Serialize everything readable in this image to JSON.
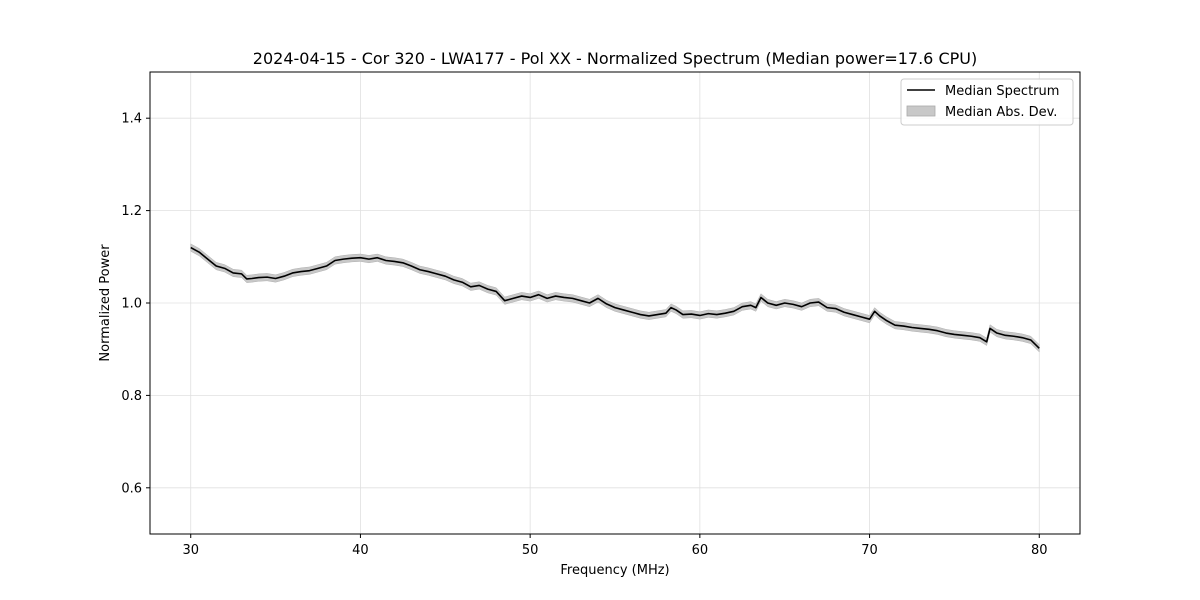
{
  "chart_data": {
    "type": "line",
    "title": "2024-04-15 - Cor 320 - LWA177 - Pol XX - Normalized Spectrum (Median power=17.6 CPU)",
    "xlabel": "Frequency (MHz)",
    "ylabel": "Normalized Power",
    "xlim": [
      27.6,
      82.4
    ],
    "ylim": [
      0.5,
      1.5
    ],
    "xticks": [
      30,
      40,
      50,
      60,
      70,
      80
    ],
    "xtick_labels": [
      "30",
      "40",
      "50",
      "60",
      "70",
      "80"
    ],
    "yticks": [
      0.6,
      0.8,
      1.0,
      1.2,
      1.4
    ],
    "ytick_labels": [
      "0.6",
      "0.8",
      "1.0",
      "1.2",
      "1.4"
    ],
    "grid": true,
    "legend_position": "top-right",
    "colors": {
      "line": "#000000",
      "band": "#c8c8c8",
      "grid": "#e0e0e0"
    },
    "series": [
      {
        "name": "Median Spectrum",
        "x": [
          30,
          30.5,
          31,
          31.5,
          32,
          32.5,
          33,
          33.3,
          33.6,
          34,
          34.5,
          35,
          35.5,
          36,
          36.5,
          37,
          37.5,
          38,
          38.5,
          39,
          39.5,
          40,
          40.5,
          41,
          41.5,
          42,
          42.5,
          43,
          43.5,
          44,
          44.5,
          45,
          45.5,
          46,
          46.5,
          47,
          47.5,
          48,
          48.5,
          49,
          49.5,
          50,
          50.5,
          51,
          51.5,
          52,
          52.5,
          53,
          53.5,
          54,
          54.5,
          55,
          55.5,
          56,
          56.5,
          57,
          57.5,
          58,
          58.3,
          58.6,
          59,
          59.5,
          60,
          60.5,
          61,
          61.5,
          62,
          62.5,
          63,
          63.3,
          63.6,
          64,
          64.5,
          65,
          65.5,
          66,
          66.5,
          67,
          67.5,
          68,
          68.5,
          69,
          69.5,
          70,
          70.3,
          70.6,
          71,
          71.5,
          72,
          72.5,
          73,
          73.5,
          74,
          74.5,
          75,
          75.5,
          76,
          76.5,
          76.9,
          77.1,
          77.5,
          78,
          78.5,
          79,
          79.5,
          80
        ],
        "values": [
          1.12,
          1.11,
          1.095,
          1.08,
          1.075,
          1.065,
          1.063,
          1.052,
          1.053,
          1.055,
          1.056,
          1.053,
          1.058,
          1.065,
          1.068,
          1.07,
          1.075,
          1.08,
          1.092,
          1.095,
          1.097,
          1.098,
          1.095,
          1.098,
          1.092,
          1.09,
          1.087,
          1.08,
          1.072,
          1.068,
          1.063,
          1.058,
          1.05,
          1.045,
          1.035,
          1.038,
          1.03,
          1.025,
          1.005,
          1.01,
          1.015,
          1.012,
          1.018,
          1.01,
          1.015,
          1.012,
          1.01,
          1.005,
          1.0,
          1.01,
          0.998,
          0.99,
          0.985,
          0.98,
          0.975,
          0.972,
          0.975,
          0.978,
          0.99,
          0.985,
          0.975,
          0.976,
          0.973,
          0.977,
          0.975,
          0.978,
          0.982,
          0.992,
          0.995,
          0.99,
          1.012,
          1.0,
          0.995,
          1.0,
          0.997,
          0.992,
          1.0,
          1.002,
          0.99,
          0.988,
          0.98,
          0.975,
          0.97,
          0.965,
          0.982,
          0.972,
          0.962,
          0.952,
          0.95,
          0.947,
          0.945,
          0.943,
          0.94,
          0.935,
          0.932,
          0.93,
          0.928,
          0.925,
          0.916,
          0.945,
          0.935,
          0.93,
          0.928,
          0.925,
          0.92,
          0.902
        ]
      },
      {
        "name": "Median Abs. Dev.",
        "band_halfwidth": 0.008
      }
    ]
  }
}
